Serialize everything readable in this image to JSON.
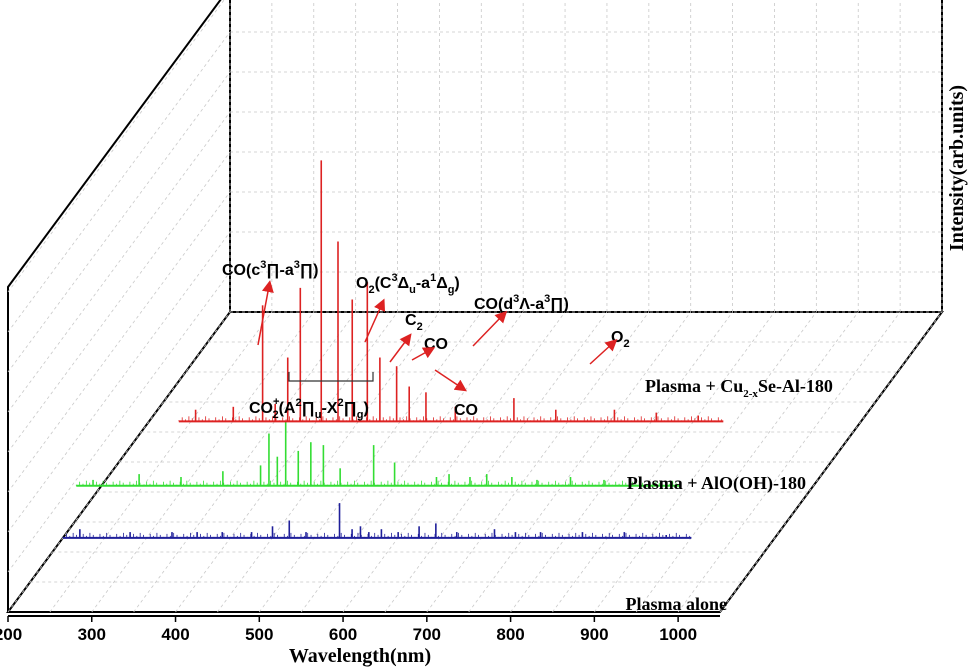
{
  "chart_data": {
    "type": "line",
    "projection": "3d-waterfall",
    "xlabel": "Wavelength(nm)",
    "zlabel": "Intensity(arb.units)",
    "xlim": [
      200,
      1050
    ],
    "x_ticks": [
      "200",
      "300",
      "400",
      "500",
      "600",
      "700",
      "800",
      "900",
      "1000"
    ],
    "grid": true,
    "series": [
      {
        "name": "Plasma alone",
        "color": "#1f1f9a",
        "x": [
          250,
          310,
          360,
          390,
          420,
          455,
          480,
          500,
          520,
          560,
          575,
          585,
          595,
          610,
          630,
          655,
          675,
          700,
          745,
          770,
          800,
          850,
          900,
          950
        ],
        "y": [
          3,
          2,
          2,
          2,
          2,
          2,
          4,
          6,
          2,
          12,
          3,
          4,
          2,
          3,
          2,
          4,
          5,
          2,
          3,
          2,
          2,
          2,
          2,
          1
        ]
      },
      {
        "name": "Plasma + AlO(OH)-180",
        "color": "#33dd33",
        "x": [
          230,
          285,
          335,
          385,
          430,
          440,
          450,
          460,
          475,
          490,
          505,
          525,
          565,
          590,
          640,
          655,
          680,
          700,
          730,
          760,
          800,
          840,
          900
        ],
        "y": [
          2,
          4,
          3,
          5,
          7,
          18,
          10,
          22,
          12,
          15,
          14,
          6,
          14,
          8,
          3,
          4,
          3,
          4,
          3,
          2,
          3,
          2,
          1
        ]
      },
      {
        "name": "Plasma + Cu2-xSe-Al-180",
        "color": "#dd2222",
        "x": [
          300,
          345,
          380,
          395,
          410,
          425,
          450,
          470,
          487,
          505,
          520,
          540,
          555,
          575,
          610,
          680,
          730,
          800,
          850,
          900
        ],
        "y": [
          4,
          5,
          40,
          6,
          22,
          46,
          90,
          62,
          42,
          48,
          22,
          19,
          12,
          10,
          5,
          8,
          4,
          4,
          3,
          2
        ]
      }
    ],
    "annotations": [
      "CO(c³∏-a³∏)",
      "O2(C³Δu-a¹Δg)",
      "C2",
      "CO",
      "CO(d³Λ-a³∏)",
      "O2",
      "CO2+(A²∏u-X²∏g)",
      "CO"
    ]
  },
  "labels": {
    "xlabel": "Wavelength(nm)",
    "zlabel": "Intensity(arb.units)",
    "series_alone": "Plasma alone",
    "series_aloh": "Plasma + AlO(OH)-180",
    "series_cu_pre": "Plasma + Cu",
    "series_cu_sub": "2-x",
    "series_cu_post": "Se-Al-180"
  },
  "annotation_parts": {
    "co_c": {
      "a": "CO(c",
      "s1": "3",
      "b": "∏-a",
      "s2": "3",
      "c": "∏)"
    },
    "o2": {
      "a": "O",
      "s0": "2",
      "b": "(C",
      "s1": "3",
      "c": "Δ",
      "s2": "u",
      "d": "-a",
      "s3": "1",
      "e": "Δ",
      "s4": "g",
      "f": ")"
    },
    "c2": {
      "a": "C",
      "s": "2"
    },
    "co_small": "CO",
    "co_d": {
      "a": "CO(d",
      "s1": "3",
      "b": "Λ-a",
      "s2": "3",
      "c": "∏)"
    },
    "o2_small": {
      "a": "O",
      "s": "2"
    },
    "co2p": {
      "a": "CO",
      "sup": "+",
      "sub": "2",
      "b": "(A",
      "s1": "2",
      "c": "∏",
      "s2": "u",
      "d": "-X",
      "s3": "2",
      "e": "∏",
      "s4": "g",
      "f": ")"
    },
    "co_red": "CO"
  }
}
